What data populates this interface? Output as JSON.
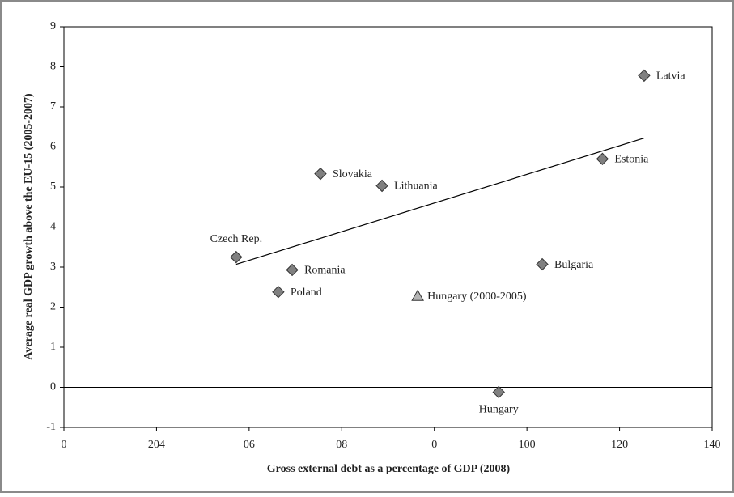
{
  "chart_data": {
    "type": "scatter",
    "x_label": "Gross external debt as a percentage of GDP (2008)",
    "y_label": "Average real GDP growth above the EU-15 (2005-2007)",
    "labels": [
      "Czech Rep.",
      "Romania",
      "Poland",
      "Slovakia",
      "Lithuania",
      "Hungary (2000-2005)",
      "Hungary",
      "Bulgaria",
      "Estonia",
      "Latvia"
    ],
    "x": [
      37.2,
      49.3,
      46.3,
      55.4,
      68.7,
      76.4,
      93.9,
      103.3,
      116.3,
      125.3
    ],
    "y": [
      3.25,
      2.93,
      2.38,
      5.33,
      5.03,
      2.28,
      -0.12,
      3.07,
      5.7,
      7.78
    ],
    "markers": [
      "diamond",
      "diamond",
      "diamond",
      "diamond",
      "diamond",
      "triangle",
      "diamond",
      "diamond",
      "diamond",
      "diamond"
    ],
    "colors": {
      "diamond": "#808080",
      "triangle": "#b4b4b4"
    },
    "trendline": {
      "x": [
        37.2,
        125.3
      ],
      "y": [
        3.07,
        6.22
      ]
    },
    "xlim": [
      0,
      140
    ],
    "xticks": [
      0,
      {
        "value": 20,
        "label": "204"
      },
      {
        "value": 40,
        "label": "06"
      },
      {
        "value": 60,
        "label": "08"
      },
      {
        "value": 80,
        "label": "0"
      },
      100,
      120,
      140
    ],
    "ylim": [
      -1,
      9
    ],
    "yticks": [
      -1,
      0,
      1,
      2,
      3,
      4,
      5,
      6,
      7,
      8,
      9
    ]
  }
}
